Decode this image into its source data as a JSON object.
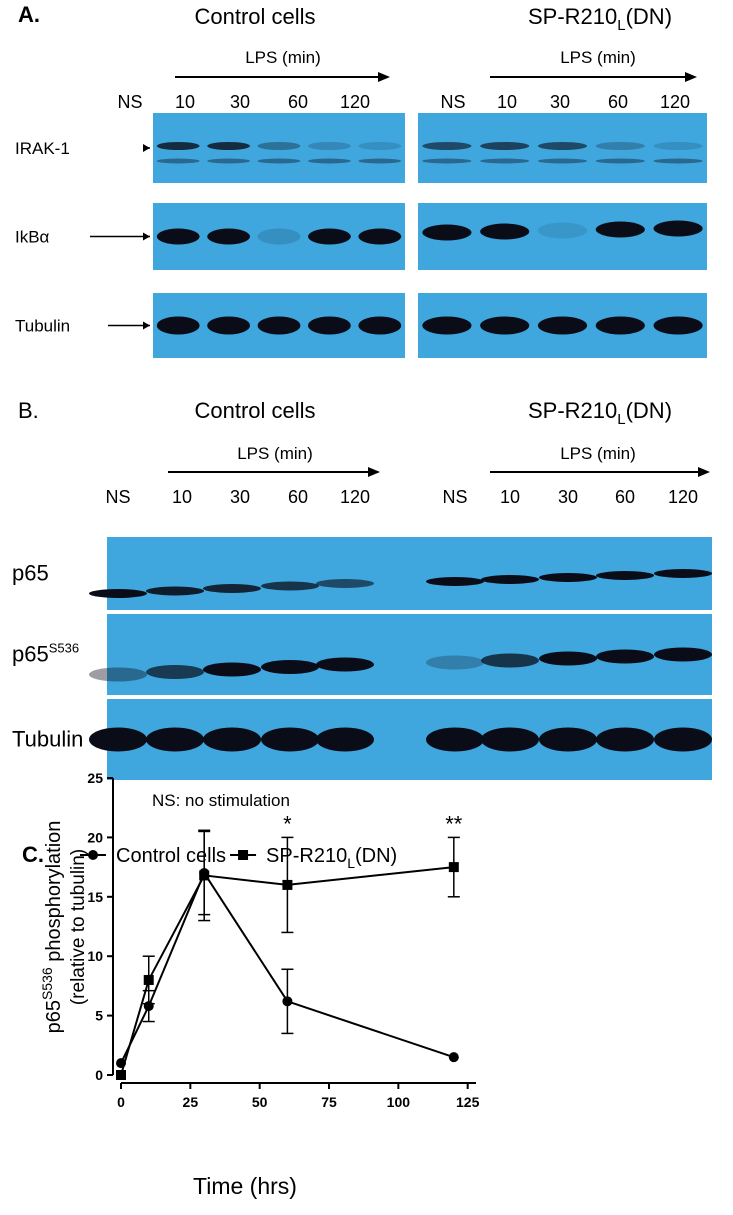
{
  "panel_a": {
    "label": "A.",
    "control_title": "Control cells",
    "dn_title": [
      "SP-R210",
      "L",
      "(DN)"
    ],
    "treatment": "LPS (min)",
    "lanes": [
      "NS",
      "10",
      "30",
      "60",
      "120"
    ],
    "rows": [
      "IRAK-1",
      "IkBα",
      "Tubulin"
    ]
  },
  "panel_b": {
    "label": "B.",
    "control_title": "Control cells",
    "dn_title": [
      "SP-R210",
      "L",
      "(DN)"
    ],
    "treatment": "LPS (min)",
    "lanes": [
      "NS",
      "10",
      "30",
      "60",
      "120"
    ],
    "rows": [
      [
        "p65"
      ],
      [
        "p65",
        "S536"
      ],
      [
        "Tubulin"
      ]
    ],
    "note": "NS: no stimulation"
  },
  "chart_data": {
    "type": "line",
    "label": "C.",
    "ylabel": [
      "p65",
      "S536",
      " phosphorylation",
      "(relative to tubulin)"
    ],
    "xlabel": "Time (hrs)",
    "x": [
      0,
      10,
      30,
      60,
      120
    ],
    "series": [
      {
        "name": [
          "Control cells"
        ],
        "marker": "circle",
        "color": "#000000",
        "values": [
          1,
          5.8,
          17,
          6.2,
          1.5
        ],
        "errors": [
          null,
          1.3,
          3.5,
          2.7,
          null
        ]
      },
      {
        "name": [
          "SP-R210",
          "L",
          "(DN)"
        ],
        "marker": "square",
        "color": "#000000",
        "values": [
          0,
          8,
          16.8,
          16,
          17.5
        ],
        "errors": [
          null,
          2,
          3.8,
          4,
          2.5
        ]
      }
    ],
    "annotations": [
      {
        "text": "*",
        "x": 60
      },
      {
        "text": "**",
        "x": 120
      }
    ],
    "xlim": [
      0,
      128
    ],
    "ylim": [
      0,
      25
    ],
    "xticks": [
      0,
      25,
      50,
      75,
      100,
      125
    ],
    "yticks": [
      0,
      5,
      10,
      15,
      20,
      25
    ]
  }
}
